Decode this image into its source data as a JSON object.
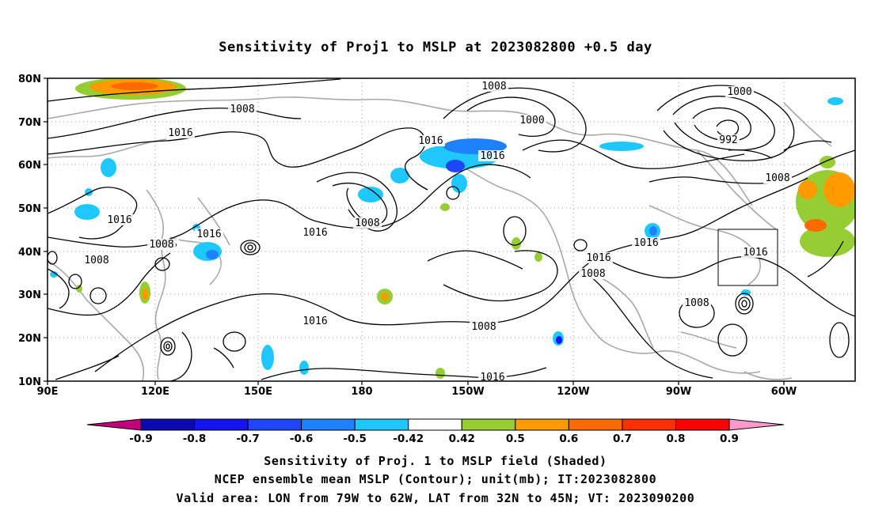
{
  "title": "Sensitivity of Proj1 to MSLP at 2023082800 +0.5 day",
  "lat_ticks": [
    "80N",
    "70N",
    "60N",
    "50N",
    "40N",
    "30N",
    "20N",
    "10N"
  ],
  "lon_ticks": [
    "90E",
    "120E",
    "150E",
    "180",
    "150W",
    "120W",
    "90W",
    "60W"
  ],
  "colorbar": {
    "labels": [
      "-0.9",
      "-0.8",
      "-0.7",
      "-0.6",
      "-0.5",
      "-0.42",
      "0.42",
      "0.5",
      "0.6",
      "0.7",
      "0.8",
      "0.9"
    ],
    "colors": [
      "#c2007a",
      "#0a0ab0",
      "#1414f0",
      "#1e46ff",
      "#1e82ff",
      "#1ec8ff",
      "#ffffff",
      "#96cd32",
      "#ff9a00",
      "#ff6a00",
      "#ff3000",
      "#ff0000",
      "#ff99cc"
    ]
  },
  "contour_labels": [
    "1008",
    "1016",
    "1016",
    "1008",
    "1016",
    "1016",
    "1016",
    "1008",
    "1008",
    "1016",
    "1016",
    "1016",
    "1008",
    "1000",
    "992",
    "1008",
    "1016",
    "1016",
    "1016",
    "1008",
    "1016",
    "1008",
    "1008",
    "1016",
    "1000",
    "1008"
  ],
  "valid_area": {
    "lon_range": [
      "79W",
      "62W"
    ],
    "lat_range": [
      "32N",
      "45N"
    ]
  },
  "captions": {
    "line1": "Sensitivity of Proj. 1 to MSLP field (Shaded)",
    "line2": "NCEP ensemble mean MSLP (Contour); unit(mb); IT:2023082800",
    "line3": "Valid area: LON from 79W to 62W, LAT from 32N to 45N; VT: 2023090200"
  }
}
